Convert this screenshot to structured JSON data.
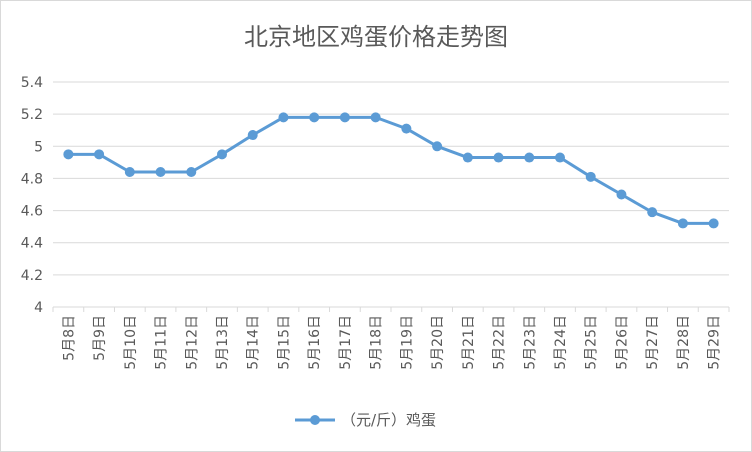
{
  "chart_data": {
    "type": "line",
    "title": "北京地区鸡蛋价格走势图",
    "categories": [
      "5月8日",
      "5月9日",
      "5月10日",
      "5月11日",
      "5月12日",
      "5月13日",
      "5月14日",
      "5月15日",
      "5月16日",
      "5月17日",
      "5月18日",
      "5月19日",
      "5月20日",
      "5月21日",
      "5月22日",
      "5月23日",
      "5月24日",
      "5月25日",
      "5月26日",
      "5月27日",
      "5月28日",
      "5月29日"
    ],
    "series": [
      {
        "name": "（元/斤）鸡蛋",
        "values": [
          4.95,
          4.95,
          4.84,
          4.84,
          4.84,
          4.95,
          5.07,
          5.18,
          5.18,
          5.18,
          5.18,
          5.11,
          5.0,
          4.93,
          4.93,
          4.93,
          4.93,
          4.81,
          4.7,
          4.59,
          4.52,
          4.52
        ]
      }
    ],
    "ylim": [
      4,
      5.4
    ],
    "yticks": [
      "4",
      "4.2",
      "4.4",
      "4.6",
      "4.8",
      "5",
      "5.2",
      "5.4"
    ],
    "grid": true,
    "legend_position": "bottom",
    "colors": {
      "series": "#5b9bd5",
      "grid": "#d9d9d9",
      "text": "#595959"
    }
  }
}
